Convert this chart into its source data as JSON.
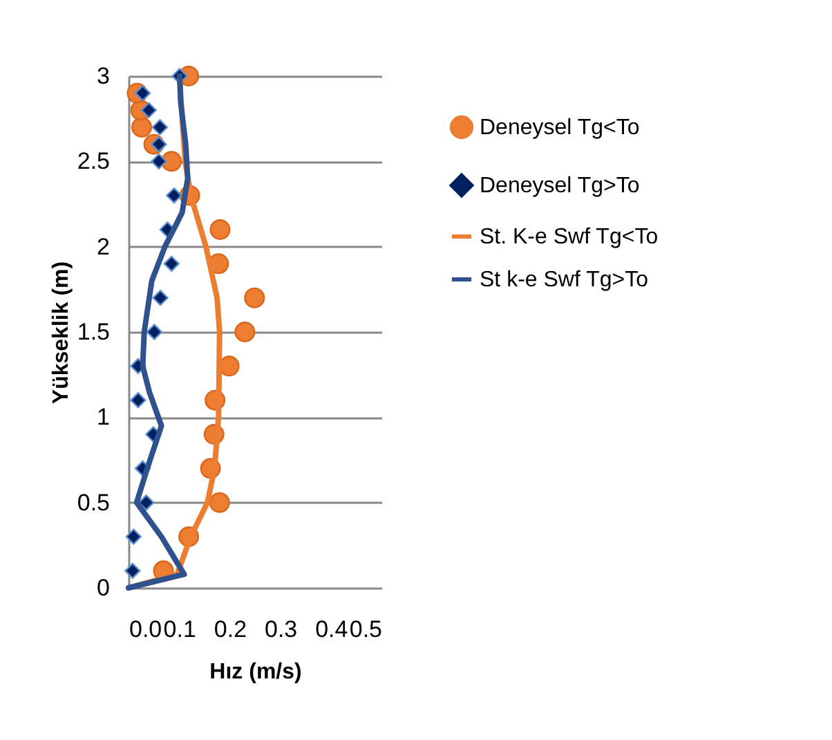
{
  "chart_data": {
    "type": "scatter",
    "xlabel": "Hız (m/s)",
    "ylabel": "Yükseklik (m)",
    "xlim": [
      0,
      0.5
    ],
    "xticks": [
      {
        "value": 0,
        "label": "0.0"
      },
      {
        "value": 0.1,
        "label": "0.1"
      },
      {
        "value": 0.2,
        "label": "0.2"
      },
      {
        "value": 0.3,
        "label": "0.3"
      },
      {
        "value": 0.4,
        "label": "0.4"
      },
      {
        "value": 0.5,
        "label": "0.5"
      }
    ],
    "ylim": [
      0,
      3
    ],
    "yticks": [
      0,
      0.5,
      1,
      1.5,
      2,
      2.5,
      3
    ],
    "grid": "y",
    "legend": "right",
    "series": [
      {
        "name": "Deneysel Tg<To",
        "marker": "circle",
        "color": "#ed7d31",
        "x": [
          0.069,
          0.119,
          0.18,
          0.162,
          0.169,
          0.171,
          0.199,
          0.23,
          0.249,
          0.178,
          0.181,
          0.121,
          0.085,
          0.05,
          0.026,
          0.024,
          0.017,
          0.119
        ],
        "values": [
          0.1,
          0.3,
          0.5,
          0.7,
          0.9,
          1.1,
          1.3,
          1.5,
          1.7,
          1.9,
          2.1,
          2.3,
          2.5,
          2.6,
          2.7,
          2.8,
          2.9,
          3.0
        ]
      },
      {
        "name": "Deneysel Tg>To",
        "marker": "diamond",
        "color": "#002060",
        "x": [
          0.008,
          0.01,
          0.035,
          0.028,
          0.049,
          0.019,
          0.019,
          0.051,
          0.063,
          0.085,
          0.077,
          0.09,
          0.06,
          0.06,
          0.062,
          0.04,
          0.028,
          0.101
        ],
        "values": [
          0.1,
          0.3,
          0.5,
          0.7,
          0.9,
          1.1,
          1.3,
          1.5,
          1.7,
          1.9,
          2.1,
          2.3,
          2.5,
          2.6,
          2.7,
          2.8,
          2.9,
          3.0
        ]
      },
      {
        "name": "St. K-e Swf Tg<To",
        "type": "line",
        "marker": "none",
        "line_style": "solid",
        "color": "#ed7d31",
        "x": [
          0,
          0.096,
          0.123,
          0.156,
          0.17,
          0.178,
          0.18,
          0.175,
          0.153,
          0.123,
          0.112,
          0.105,
          0.101
        ],
        "values": [
          0,
          0.08,
          0.3,
          0.5,
          0.7,
          1.0,
          1.5,
          1.7,
          2.0,
          2.3,
          2.5,
          2.8,
          3.0
        ]
      },
      {
        "name": "St k-e Swf Tg>To",
        "type": "line",
        "marker": "none",
        "line_style": "solid",
        "color": "#2f528f",
        "x": [
          0,
          0.11,
          0.065,
          0.016,
          0.037,
          0.065,
          0.041,
          0.028,
          0.031,
          0.046,
          0.072,
          0.106,
          0.117,
          0.113,
          0.103,
          0.101
        ],
        "values": [
          0,
          0.08,
          0.3,
          0.5,
          0.7,
          0.95,
          1.15,
          1.3,
          1.5,
          1.8,
          2.0,
          2.2,
          2.4,
          2.6,
          2.85,
          3.0
        ]
      }
    ]
  }
}
